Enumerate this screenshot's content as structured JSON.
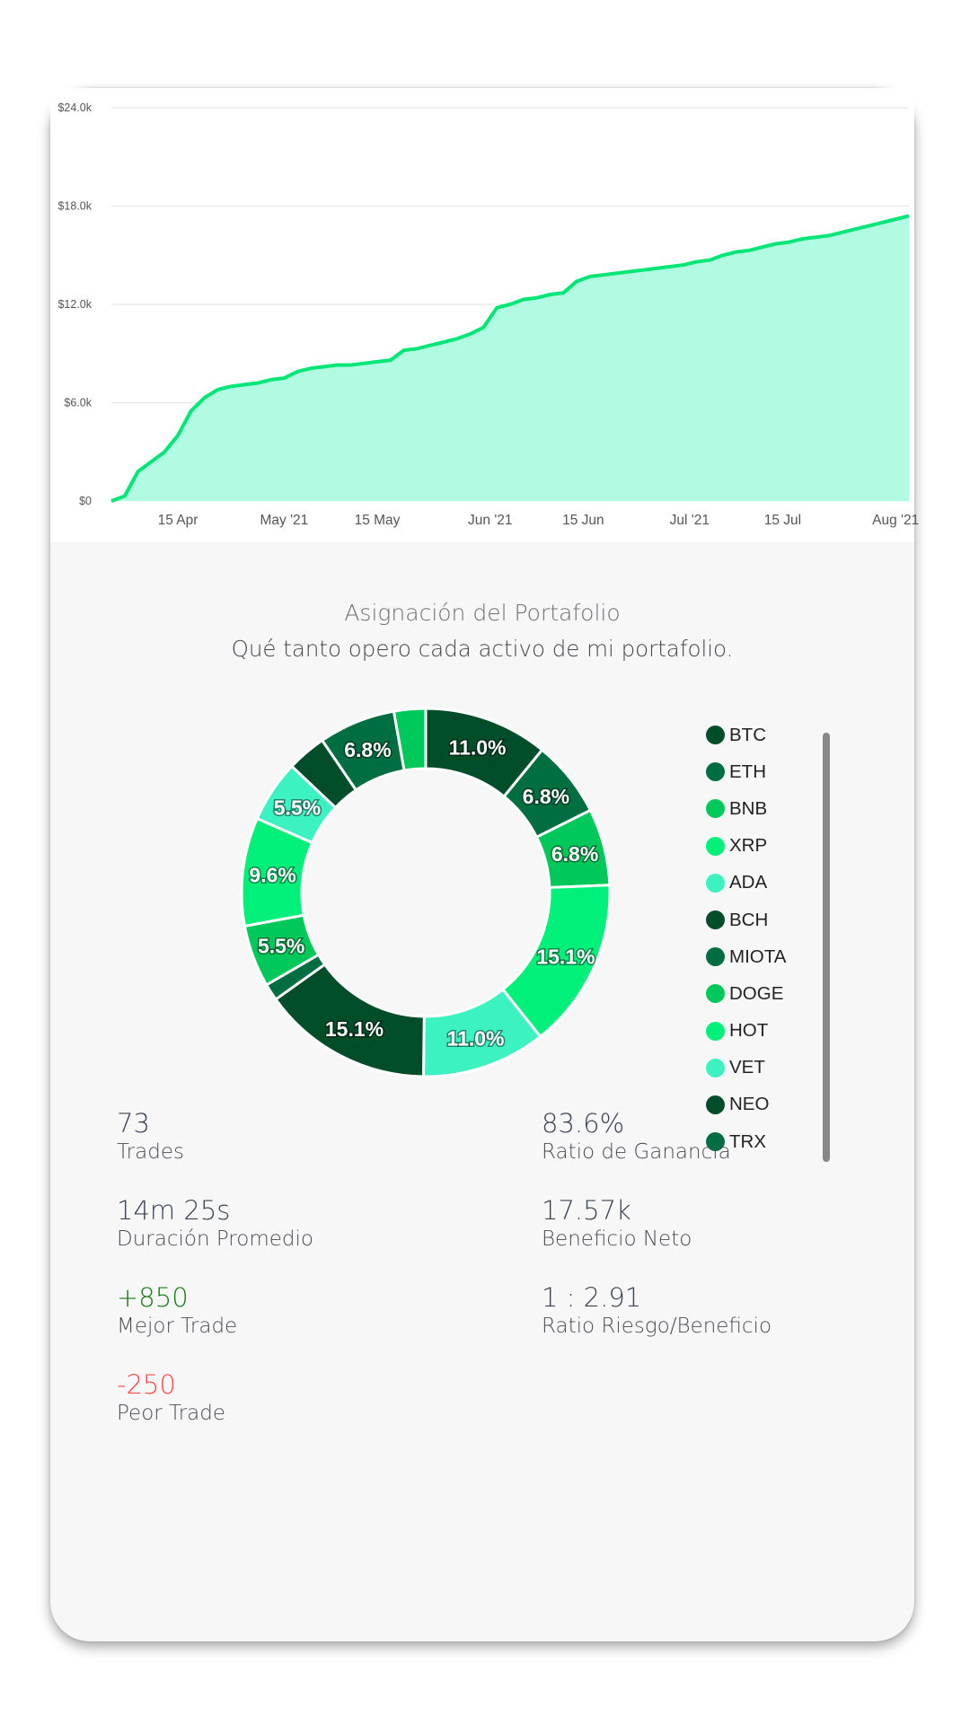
{
  "colors": {
    "area_line": "#00e676",
    "area_fill": "#b2fbe3",
    "positive": "#1a7a1a",
    "negative": "#ff4747"
  },
  "chart_data": [
    {
      "type": "area",
      "title": "",
      "xlabel": "",
      "ylabel": "",
      "x_tick_labels": [
        "15 Apr",
        "May '21",
        "15 May",
        "Jun '21",
        "15 Jun",
        "Jul '21",
        "15 Jul",
        "Aug '21"
      ],
      "y_tick_labels": [
        "$0",
        "$6.0k",
        "$12.0k",
        "$18.0k",
        "$24.0k"
      ],
      "ylim": [
        0,
        24000
      ],
      "grid": true,
      "x": [
        "2021-04-05",
        "2021-04-07",
        "2021-04-09",
        "2021-04-11",
        "2021-04-13",
        "2021-04-15",
        "2021-04-17",
        "2021-04-19",
        "2021-04-21",
        "2021-04-23",
        "2021-04-25",
        "2021-04-27",
        "2021-04-29",
        "2021-05-01",
        "2021-05-03",
        "2021-05-05",
        "2021-05-07",
        "2021-05-09",
        "2021-05-11",
        "2021-05-13",
        "2021-05-15",
        "2021-05-17",
        "2021-05-19",
        "2021-05-21",
        "2021-05-23",
        "2021-05-25",
        "2021-05-27",
        "2021-05-29",
        "2021-05-31",
        "2021-06-02",
        "2021-06-04",
        "2021-06-06",
        "2021-06-08",
        "2021-06-10",
        "2021-06-12",
        "2021-06-14",
        "2021-06-16",
        "2021-06-18",
        "2021-06-20",
        "2021-06-22",
        "2021-06-24",
        "2021-06-26",
        "2021-06-28",
        "2021-06-30",
        "2021-07-02",
        "2021-07-04",
        "2021-07-06",
        "2021-07-08",
        "2021-07-10",
        "2021-07-12",
        "2021-07-14",
        "2021-07-16",
        "2021-07-18",
        "2021-07-20",
        "2021-07-22",
        "2021-07-24",
        "2021-07-26",
        "2021-07-28",
        "2021-07-30",
        "2021-08-01",
        "2021-08-03"
      ],
      "series": [
        {
          "values": [
            0,
            300,
            1800,
            2400,
            3000,
            4000,
            5500,
            6300,
            6800,
            7000,
            7100,
            7200,
            7400,
            7500,
            7900,
            8100,
            8200,
            8300,
            8300,
            8400,
            8500,
            8600,
            9200,
            9300,
            9500,
            9700,
            9900,
            10200,
            10600,
            11800,
            12000,
            12300,
            12400,
            12600,
            12700,
            13400,
            13700,
            13800,
            13900,
            14000,
            14100,
            14200,
            14300,
            14400,
            14600,
            14700,
            15000,
            15200,
            15300,
            15500,
            15700,
            15800,
            16000,
            16100,
            16200,
            16400,
            16600,
            16800,
            17000,
            17200,
            17400
          ]
        }
      ]
    },
    {
      "type": "pie",
      "title": "Asignación del Portafolio",
      "subtitle": "Qué tanto opero cada activo de mi portafolio.",
      "slices": [
        {
          "label": "11.0%",
          "value": 11.0,
          "color": "#004d2a"
        },
        {
          "label": "6.8%",
          "value": 6.8,
          "color": "#006e40"
        },
        {
          "label": "6.8%",
          "value": 6.8,
          "color": "#00c85a"
        },
        {
          "label": "15.1%",
          "value": 15.1,
          "color": "#00f07a"
        },
        {
          "label": "11.0%",
          "value": 11.0,
          "color": "#3bf2c0"
        },
        {
          "label": "15.1%",
          "value": 15.1,
          "color": "#004d2a"
        },
        {
          "label": "",
          "value": 1.5,
          "color": "#006e40"
        },
        {
          "label": "5.5%",
          "value": 5.5,
          "color": "#00c85a"
        },
        {
          "label": "9.6%",
          "value": 9.6,
          "color": "#00f07a"
        },
        {
          "label": "5.5%",
          "value": 5.5,
          "color": "#3bf2c0"
        },
        {
          "label": "",
          "value": 3.5,
          "color": "#004d2a"
        },
        {
          "label": "6.8%",
          "value": 6.8,
          "color": "#006e40"
        },
        {
          "label": "",
          "value": 2.8,
          "color": "#00c85a"
        }
      ],
      "legend": [
        {
          "name": "BTC",
          "color": "#004d2a"
        },
        {
          "name": "ETH",
          "color": "#006e40"
        },
        {
          "name": "BNB",
          "color": "#00c85a"
        },
        {
          "name": "XRP",
          "color": "#00f07a"
        },
        {
          "name": "ADA",
          "color": "#3bf2c0"
        },
        {
          "name": "BCH",
          "color": "#004d2a"
        },
        {
          "name": "MIOTA",
          "color": "#006e40"
        },
        {
          "name": "DOGE",
          "color": "#00c85a"
        },
        {
          "name": "HOT",
          "color": "#00f07a"
        },
        {
          "name": "VET",
          "color": "#3bf2c0"
        },
        {
          "name": "NEO",
          "color": "#004d2a"
        },
        {
          "name": "TRX",
          "color": "#006e40"
        }
      ],
      "legend_position": "right"
    }
  ],
  "stats": {
    "trades": {
      "value": "73",
      "label": "Trades"
    },
    "win_ratio": {
      "value": "83.6%",
      "label": "Ratio de Ganancia"
    },
    "avg_dur": {
      "value": "14m 25s",
      "label": "Duración Promedio"
    },
    "net": {
      "value": "17.57k",
      "label": "Beneficio Neto"
    },
    "best": {
      "value": "+850",
      "label": "Mejor Trade"
    },
    "rr": {
      "value": "1 : 2.91",
      "label": "Ratio Riesgo/Beneficio"
    },
    "worst": {
      "value": "-250",
      "label": "Peor Trade"
    }
  }
}
